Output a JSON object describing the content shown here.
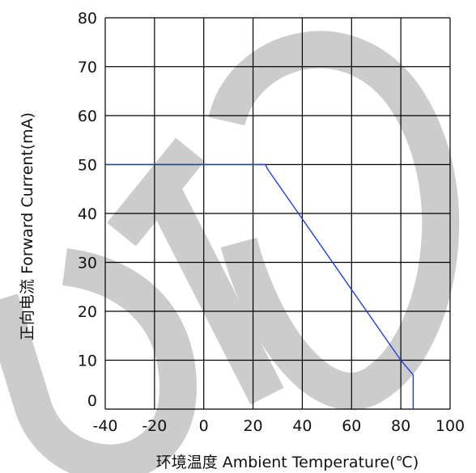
{
  "chart_data": {
    "type": "line",
    "xlabel": "环境温度  Ambient Temperature(℃)",
    "ylabel": "正向电流 Forward Current(mA)",
    "xlim": [
      -40,
      100
    ],
    "ylim": [
      0,
      80
    ],
    "x_ticks": [
      -40,
      -20,
      0,
      20,
      40,
      60,
      80,
      100
    ],
    "y_ticks": [
      0,
      10,
      20,
      30,
      40,
      50,
      60,
      70,
      80
    ],
    "x_tick_labels": [
      "-40",
      "-20",
      "0",
      "20",
      "40",
      "60",
      "80",
      "100"
    ],
    "y_tick_labels": [
      "0",
      "10",
      "20",
      "30",
      "40",
      "50",
      "60",
      "70",
      "80"
    ],
    "grid": true,
    "legend": "none",
    "series": [
      {
        "color": "#1f3fd6",
        "points": [
          [
            -40,
            50
          ],
          [
            25,
            50
          ],
          [
            26,
            49
          ],
          [
            80,
            10
          ],
          [
            85,
            7
          ],
          [
            85,
            0
          ]
        ]
      }
    ]
  },
  "colors": {
    "grid": "#000000",
    "watermark": "#cccccc"
  }
}
